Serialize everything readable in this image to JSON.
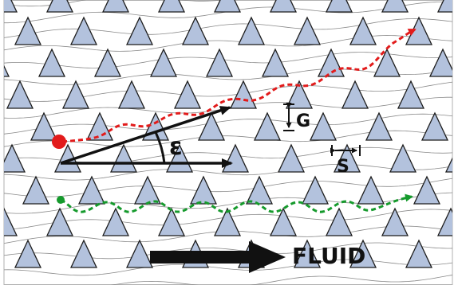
{
  "labels": {
    "angle": "ε",
    "gap": "G",
    "spacing": "S",
    "flow": "FLUID"
  },
  "colors": {
    "post_fill": "#b3c2dd",
    "post_stroke": "#1c1c1c",
    "streamline": "#8a8a8a",
    "path_upper": "#e21b1b",
    "path_lower": "#159a2c",
    "arrow": "#111111",
    "frame": "#b0b0b0"
  },
  "icons": {
    "post": "triangle-post",
    "upper_particle": "red-particle-dot",
    "lower_particle": "green-particle-dot",
    "flow_arrow": "thick-right-arrow"
  }
}
